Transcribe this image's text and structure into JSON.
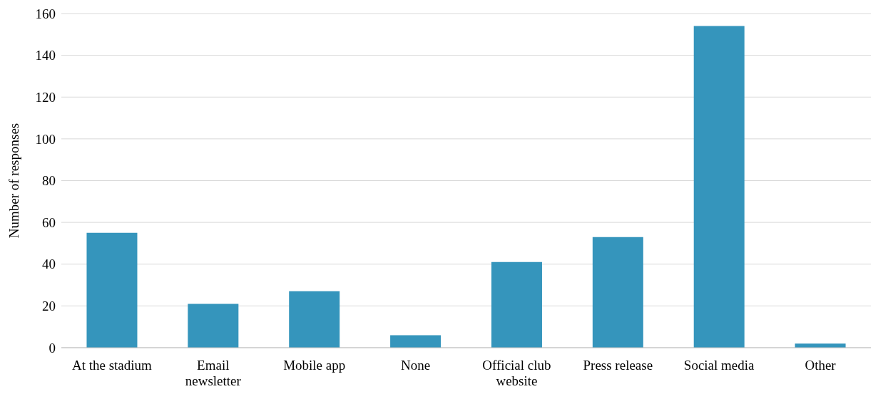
{
  "chart_data": {
    "type": "bar",
    "ylabel": "Number of responses",
    "categories": [
      "At the stadium",
      "Email newsletter",
      "Mobile app",
      "None",
      "Official club website",
      "Press release",
      "Social media",
      "Other"
    ],
    "values": [
      55,
      21,
      27,
      6,
      41,
      53,
      154,
      2
    ],
    "color": "#3595bc",
    "ylim": [
      0,
      160
    ],
    "yticks": [
      0,
      20,
      40,
      60,
      80,
      100,
      120,
      140,
      160
    ],
    "grid": "y"
  }
}
